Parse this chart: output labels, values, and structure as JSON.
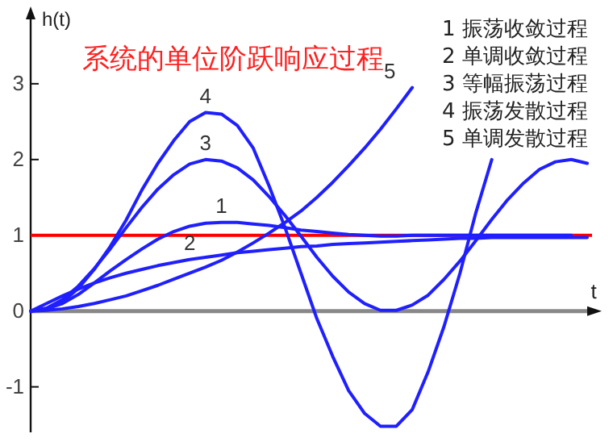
{
  "chart_data": {
    "type": "line",
    "title": "系统的单位阶跃响应过程",
    "xlabel": "t",
    "ylabel": "h(t)",
    "categories": [
      null,
      null,
      null,
      null,
      null,
      null,
      null,
      null,
      null,
      null,
      null,
      null,
      null,
      null,
      null,
      null,
      null,
      null,
      null,
      null,
      null,
      null,
      null,
      null,
      null,
      null,
      null,
      null,
      null,
      null,
      null,
      null,
      null,
      null,
      null,
      null
    ],
    "series": [
      {
        "name": "1",
        "color": "#1f1fff",
        "values": [
          0,
          0.03,
          0.1,
          0.22,
          0.37,
          0.53,
          0.68,
          0.82,
          0.95,
          1.05,
          1.12,
          1.16,
          1.17,
          1.17,
          1.15,
          1.13,
          1.1,
          1.07,
          1.05,
          1.03,
          1.01,
          1.0,
          0.99,
          0.99,
          1.0,
          1.0,
          1.0,
          1.0,
          1.0,
          1.0,
          1.0,
          1.0,
          1.0,
          1.0,
          1.0,
          null
        ]
      },
      {
        "name": "2",
        "color": "#1f1fff",
        "values": [
          0,
          0.1,
          0.2,
          0.29,
          0.37,
          0.44,
          0.5,
          0.55,
          0.6,
          0.64,
          0.68,
          0.71,
          0.74,
          0.77,
          0.79,
          0.81,
          0.83,
          0.85,
          0.86,
          0.88,
          0.89,
          0.9,
          0.91,
          0.92,
          0.93,
          0.94,
          0.95,
          0.96,
          0.96,
          0.97,
          0.97,
          0.97,
          0.97,
          0.97,
          0.97,
          0.97
        ]
      },
      {
        "name": "3",
        "color": "#1f1fff",
        "values": [
          0,
          0.04,
          0.15,
          0.33,
          0.56,
          0.82,
          1.1,
          1.37,
          1.61,
          1.8,
          1.94,
          2.0,
          1.98,
          1.89,
          1.73,
          1.51,
          1.26,
          0.99,
          0.71,
          0.46,
          0.25,
          0.1,
          0.01,
          0.01,
          0.08,
          0.21,
          0.42,
          0.66,
          0.93,
          1.21,
          1.47,
          1.69,
          1.87,
          1.97,
          2.0,
          1.95
        ]
      },
      {
        "name": "4",
        "color": "#1f1fff",
        "values": [
          0,
          0.03,
          0.12,
          0.3,
          0.55,
          0.85,
          1.2,
          1.6,
          1.95,
          2.25,
          2.5,
          2.62,
          2.6,
          2.45,
          2.15,
          1.65,
          1.1,
          0.5,
          -0.1,
          -0.6,
          -1.05,
          -1.35,
          -1.52,
          -1.52,
          -1.3,
          -0.8,
          -0.2,
          0.5,
          1.3,
          2.0,
          null,
          null,
          null,
          null,
          null,
          null
        ]
      },
      {
        "name": "5",
        "color": "#1f1fff",
        "values": [
          0,
          0.01,
          0.03,
          0.06,
          0.1,
          0.15,
          0.2,
          0.27,
          0.34,
          0.42,
          0.5,
          0.58,
          0.67,
          0.78,
          0.9,
          1.03,
          1.17,
          1.32,
          1.5,
          1.7,
          1.92,
          2.15,
          2.4,
          2.67,
          2.95,
          null,
          null,
          null,
          null,
          null,
          null,
          null,
          null,
          null,
          null,
          null
        ]
      }
    ],
    "ylim": [
      -1.6,
      3.85
    ],
    "yticks": [
      -1,
      0,
      1,
      2,
      3
    ],
    "tick_labels": "y",
    "grid": false,
    "ref_lines": [
      {
        "axis": "y",
        "value": 1,
        "color": "#ff0000"
      }
    ],
    "annotations": [
      "1 振荡收敛过程",
      "2 单调收敛过程",
      "3 等幅振荡过程",
      "4 振荡发散过程",
      "5 单调发散过程"
    ]
  }
}
